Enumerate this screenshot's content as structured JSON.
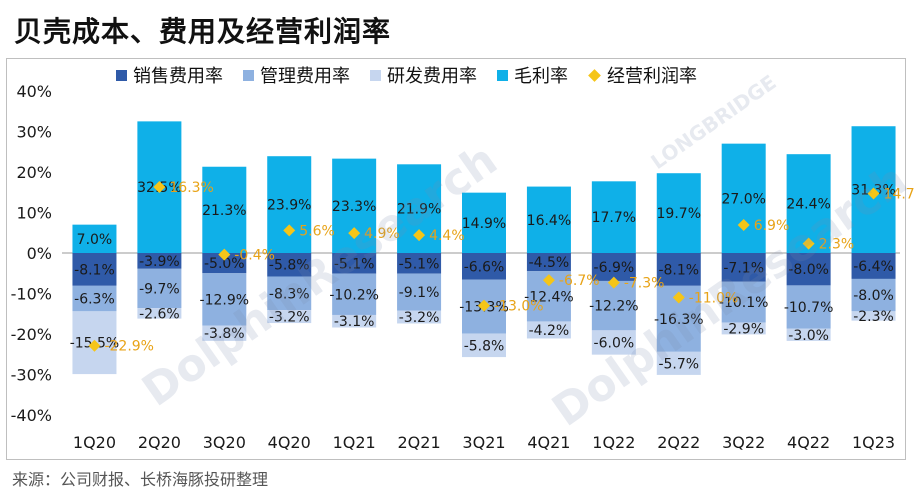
{
  "title": "贝壳成本、费用及经营利润率",
  "source": "来源：公司财报、长桥海豚投研整理",
  "watermark": "DolphinResearch",
  "watermark2": "LONGBRIDGE",
  "colors": {
    "selling": "#2f5aa8",
    "admin": "#8eb1e0",
    "rnd": "#c6d6ef",
    "gross": "#0fb0e8",
    "op": "#f5c518",
    "op_label": "#e8a317",
    "text": "#1a1a1a"
  },
  "chart_data": {
    "type": "bar",
    "title": "贝壳成本、费用及经营利润率",
    "categories": [
      "1Q20",
      "2Q20",
      "3Q20",
      "4Q20",
      "1Q21",
      "2Q21",
      "3Q21",
      "4Q21",
      "1Q22",
      "2Q22",
      "3Q22",
      "4Q22",
      "1Q23"
    ],
    "y_ticks": [
      "40%",
      "30%",
      "20%",
      "10%",
      "0%",
      "-10%",
      "-20%",
      "-30%",
      "-40%"
    ],
    "ylim": [
      -40,
      40
    ],
    "grid": false,
    "legend_position": "top",
    "series": [
      {
        "name": "销售费用率",
        "kind": "bar-stack-negative",
        "values": [
          -8.1,
          -3.9,
          -5.0,
          -5.8,
          -5.1,
          -5.1,
          -6.6,
          -4.5,
          -6.9,
          -8.1,
          -7.1,
          -8.0,
          -6.4
        ],
        "labels": [
          "-8.1%",
          "-3.9%",
          "-5.0%",
          "-5.8%",
          "-5.1%",
          "-5.1%",
          "-6.6%",
          "-4.5%",
          "-6.9%",
          "-8.1%",
          "-7.1%",
          "-8.0%",
          "-6.4%"
        ]
      },
      {
        "name": "管理费用率",
        "kind": "bar-stack-negative",
        "values": [
          -6.3,
          -9.7,
          -12.9,
          -8.3,
          -10.2,
          -9.1,
          -13.3,
          -12.4,
          -12.2,
          -16.3,
          -10.1,
          -10.7,
          -8.0
        ],
        "labels": [
          "-6.3%",
          "-9.7%",
          "-12.9%",
          "-8.3%",
          "-10.2%",
          "-9.1%",
          "-13.3%",
          "-12.4%",
          "-12.2%",
          "-16.3%",
          "-10.1%",
          "-10.7%",
          "-8.0%"
        ]
      },
      {
        "name": "研发费用率",
        "kind": "bar-stack-negative",
        "values": [
          -15.5,
          -2.6,
          -3.8,
          -3.2,
          -3.1,
          -3.2,
          -5.8,
          -4.2,
          -6.0,
          -5.7,
          -2.9,
          -3.0,
          -2.3
        ],
        "labels": [
          "-15.5%",
          "-2.6%",
          "-3.8%",
          "-3.2%",
          "-3.1%",
          "-3.2%",
          "-5.8%",
          "-4.2%",
          "-6.0%",
          "-5.7%",
          "-2.9%",
          "-3.0%",
          "-2.3%"
        ]
      },
      {
        "name": "毛利率",
        "kind": "bar-positive",
        "values": [
          7.0,
          32.5,
          21.3,
          23.9,
          23.3,
          21.9,
          14.9,
          16.4,
          17.7,
          19.7,
          27.0,
          24.4,
          31.3
        ],
        "labels": [
          "7.0%",
          "32.5%",
          "21.3%",
          "23.9%",
          "23.3%",
          "21.9%",
          "14.9%",
          "16.4%",
          "17.7%",
          "19.7%",
          "27.0%",
          "24.4%",
          "31.3%"
        ]
      },
      {
        "name": "经营利润率",
        "kind": "scatter",
        "values": [
          -22.9,
          16.3,
          -0.4,
          5.6,
          4.9,
          4.4,
          -13.0,
          -6.7,
          -7.3,
          -11.0,
          6.9,
          2.3,
          14.7
        ],
        "labels": [
          "-22.9%",
          "16.3%",
          "-0.4%",
          "5.6%",
          "4.9%",
          "4.4%",
          "-13.0%",
          "-6.7%",
          "-7.3%",
          "-11.0%",
          "6.9%",
          "2.3%",
          "14.7%"
        ]
      }
    ]
  }
}
